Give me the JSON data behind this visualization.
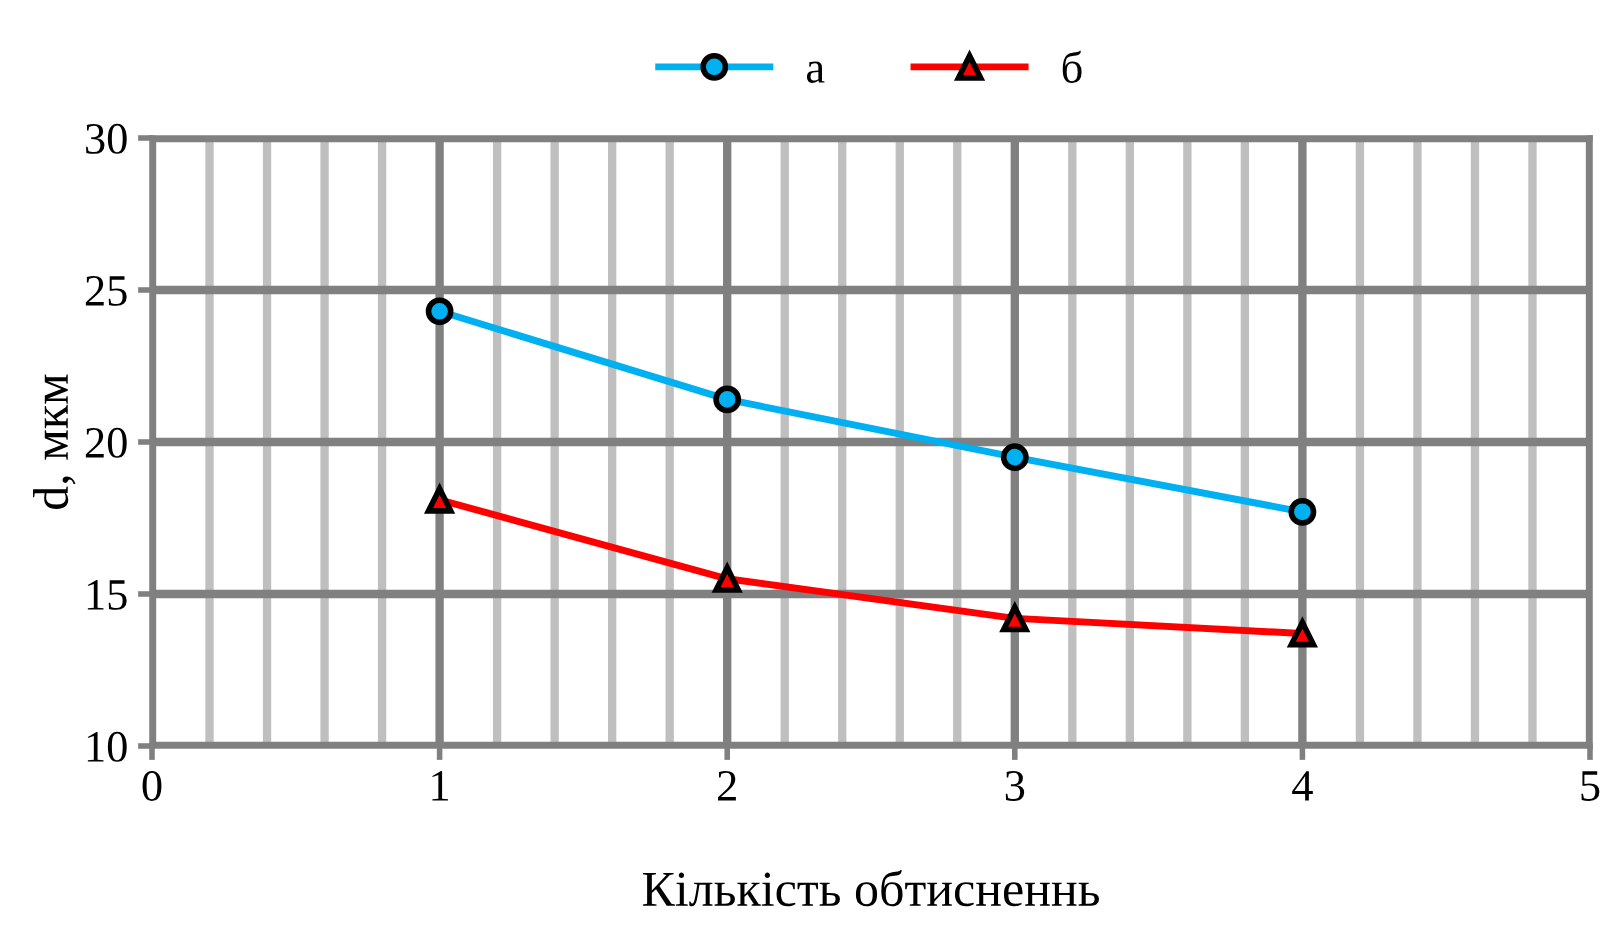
{
  "chart_data": {
    "type": "line",
    "xlabel": "Кількість обтисненнь",
    "ylabel": "d, мкм",
    "x": [
      1,
      2,
      3,
      4
    ],
    "series": [
      {
        "name": "а",
        "color": "#00b0f0",
        "values": [
          24.3,
          21.4,
          19.5,
          17.7
        ],
        "marker": "circle"
      },
      {
        "name": "б",
        "color": "#ff0000",
        "values": [
          18.1,
          15.5,
          14.2,
          13.7
        ],
        "marker": "triangle"
      }
    ],
    "xlim": [
      0,
      5
    ],
    "xticks": [
      0,
      1,
      2,
      3,
      4,
      5
    ],
    "ylim": [
      10,
      30
    ],
    "yticks": [
      10,
      15,
      20,
      25,
      30
    ],
    "grid": true,
    "legend": "top"
  }
}
